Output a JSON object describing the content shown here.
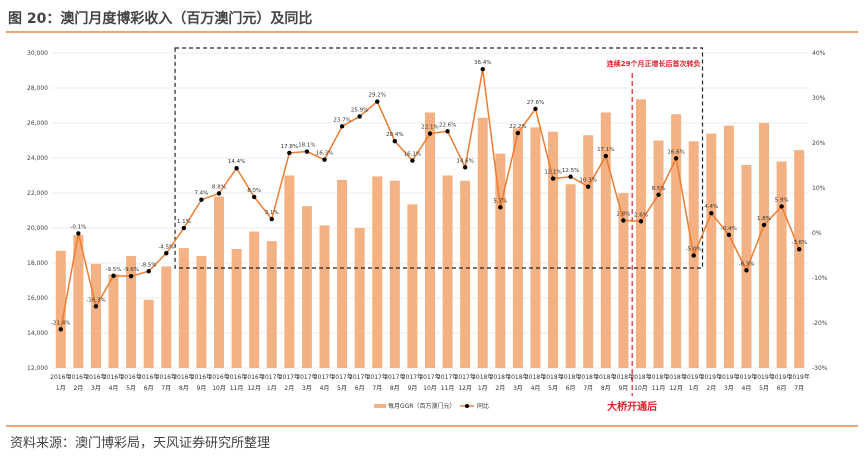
{
  "title": "图 20：澳门月度博彩收入（百万澳门元）及同比",
  "source": "资料来源：澳门博彩局，天风证券研究所整理",
  "colors": {
    "bar": "#f4b183",
    "line": "#ed7d31",
    "marker": "#000000",
    "annotation": "#e0202a",
    "rule": "#f4a46c"
  },
  "annotations": {
    "box_note": "连续29个月正增长后首次转负",
    "bridge_note": "大桥开通后"
  },
  "chart_data": {
    "type": "bar+line",
    "grid": true,
    "legend_position": "bottom",
    "years": [
      "2016年",
      "2016年",
      "2016年",
      "2016年",
      "2016年",
      "2016年",
      "2016年",
      "2016年",
      "2016年",
      "2016年",
      "2016年",
      "2016年",
      "2017年",
      "2017年",
      "2017年",
      "2017年",
      "2017年",
      "2017年",
      "2017年",
      "2017年",
      "2017年",
      "2017年",
      "2017年",
      "2017年",
      "2018年",
      "2018年",
      "2018年",
      "2018年",
      "2018年",
      "2018年",
      "2018年",
      "2018年",
      "2018年",
      "2018年",
      "2018年",
      "2018年",
      "2019年",
      "2019年",
      "2019年",
      "2019年",
      "2019年",
      "2019年",
      "2019年"
    ],
    "months": [
      "1月",
      "2月",
      "3月",
      "4月",
      "5月",
      "6月",
      "7月",
      "8月",
      "9月",
      "10月",
      "11月",
      "12月",
      "1月",
      "2月",
      "3月",
      "4月",
      "5月",
      "6月",
      "7月",
      "8月",
      "9月",
      "10月",
      "11月",
      "12月",
      "1月",
      "2月",
      "3月",
      "4月",
      "5月",
      "6月",
      "7月",
      "8月",
      "9月",
      "10月",
      "11月",
      "12月",
      "1月",
      "2月",
      "3月",
      "4月",
      "5月",
      "6月",
      "7月"
    ],
    "left_axis": {
      "ylim": [
        12000,
        30000
      ],
      "ticks": [
        "12,000",
        "14,000",
        "16,000",
        "18,000",
        "20,000",
        "22,000",
        "24,000",
        "26,000",
        "28,000",
        "30,000"
      ]
    },
    "right_axis": {
      "ylim": [
        -30,
        40
      ],
      "ticks": [
        "-30%",
        "-20%",
        "-10%",
        "0%",
        "10%",
        "20%",
        "30%",
        "40%"
      ]
    },
    "series": [
      {
        "name": "每月GGR（百万澳门元）",
        "type": "bar",
        "axis": "left",
        "values": [
          18700,
          19600,
          17950,
          17350,
          18400,
          15900,
          17800,
          18850,
          18400,
          21800,
          18800,
          19800,
          19250,
          23000,
          21250,
          20150,
          22750,
          20000,
          22950,
          22700,
          21350,
          26600,
          23000,
          22700,
          26300,
          24250,
          25700,
          25750,
          25500,
          22500,
          25300,
          26600,
          22000,
          27350,
          25000,
          26500,
          24950,
          25400,
          25850,
          23600,
          26000,
          23800,
          24450
        ]
      },
      {
        "name": "同比",
        "type": "line",
        "axis": "right",
        "values": [
          -21.4,
          -0.1,
          -16.3,
          -9.5,
          -9.6,
          -8.5,
          -4.5,
          1.1,
          7.4,
          8.8,
          14.4,
          8.0,
          3.1,
          17.8,
          18.1,
          16.3,
          23.7,
          25.9,
          29.2,
          20.4,
          16.1,
          22.1,
          22.6,
          14.6,
          36.4,
          5.7,
          22.2,
          27.6,
          12.1,
          12.5,
          10.3,
          17.1,
          2.8,
          2.6,
          8.5,
          16.6,
          -5.0,
          4.4,
          -0.4,
          -8.3,
          1.8,
          5.9,
          -3.6
        ],
        "labels": [
          "-21.4%",
          "-0.1%",
          "-16.3%",
          "-9.5%",
          "-9.6%",
          "-8.5%",
          "-4.5%",
          "1.1%",
          "7.4%",
          "8.8%",
          "14.4%",
          "8.0%",
          "3.1%",
          "17.8%",
          "18.1%",
          "16.3%",
          "23.7%",
          "25.9%",
          "29.2%",
          "20.4%",
          "16.1%",
          "22.1%",
          "22.6%",
          "14.6%",
          "36.4%",
          "5.7%",
          "22.2%",
          "27.6%",
          "12.1%",
          "12.5%",
          "10.3%",
          "17.1%",
          "2.8%",
          "2.6%",
          "8.5%",
          "16.6%",
          "-5.0%",
          "4.4%",
          "-0.4%",
          "-8.3%",
          "1.8%",
          "5.9%",
          "-3.6%"
        ]
      }
    ]
  }
}
